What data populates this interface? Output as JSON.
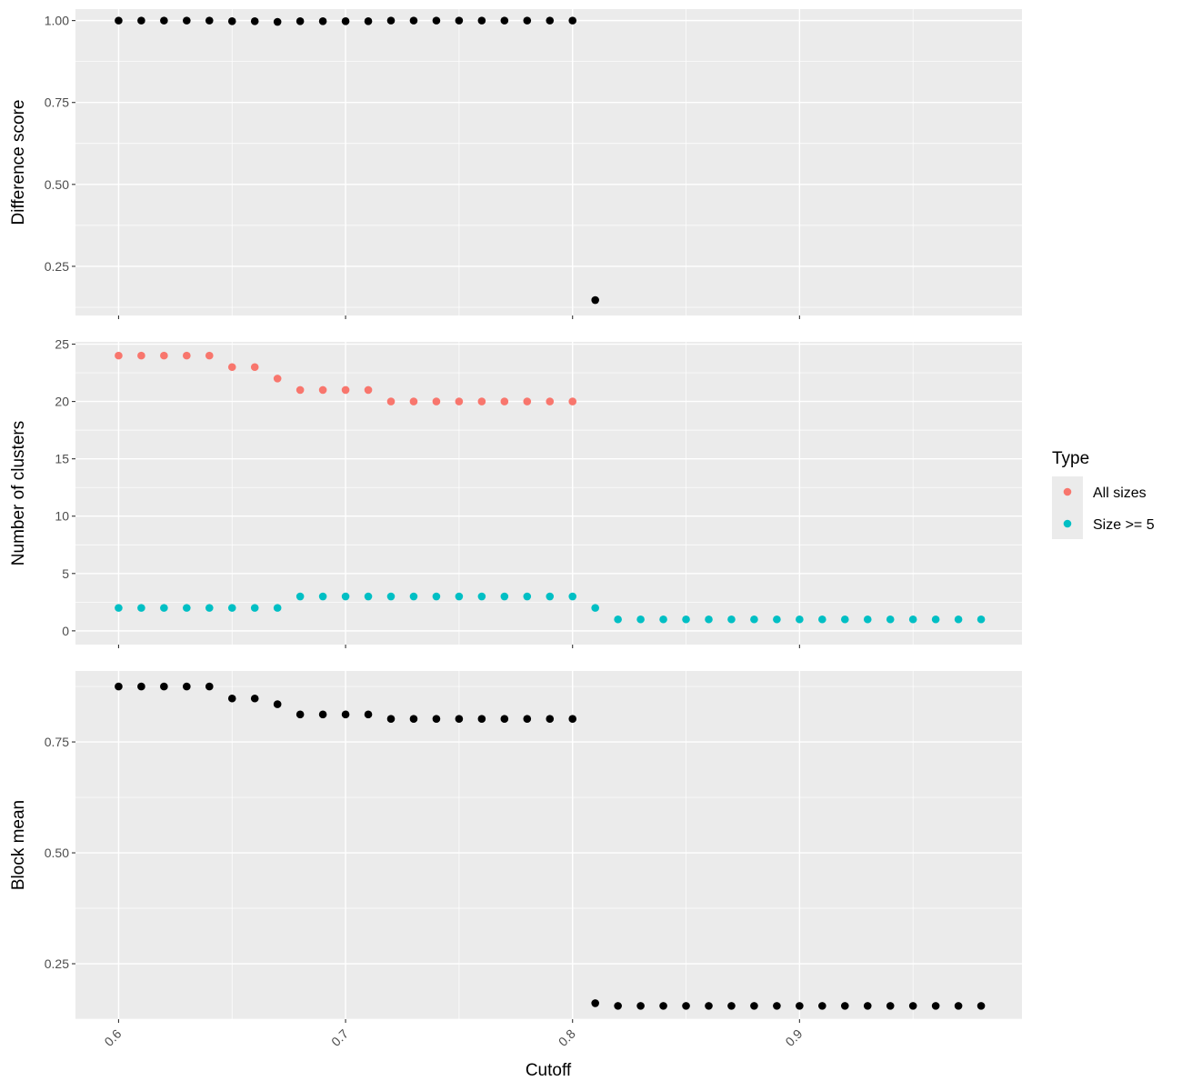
{
  "chart_data": {
    "type": "scatter",
    "x_label": "Cutoff",
    "x_ticks": [
      "0.6",
      "0.7",
      "0.8",
      "0.9"
    ],
    "xlim": [
      0.581,
      0.998
    ],
    "legend": {
      "title": "Type",
      "position": "right",
      "entries": [
        {
          "label": "All sizes",
          "color": "#f8766d"
        },
        {
          "label": "Size >= 5",
          "color": "#00bfc4"
        }
      ]
    },
    "panels": [
      {
        "ylabel": "Difference score",
        "ylim": [
          0.1,
          1.035
        ],
        "y_ticks": [
          "0.25",
          "0.50",
          "0.75",
          "1.00"
        ],
        "series": [
          {
            "color": "#000000",
            "points": [
              [
                0.6,
                1.0
              ],
              [
                0.61,
                1.0
              ],
              [
                0.62,
                1.0
              ],
              [
                0.63,
                1.0
              ],
              [
                0.64,
                1.0
              ],
              [
                0.65,
                0.998
              ],
              [
                0.66,
                0.998
              ],
              [
                0.67,
                0.996
              ],
              [
                0.68,
                0.998
              ],
              [
                0.69,
                0.998
              ],
              [
                0.7,
                0.998
              ],
              [
                0.71,
                0.998
              ],
              [
                0.72,
                1.0
              ],
              [
                0.73,
                1.0
              ],
              [
                0.74,
                1.0
              ],
              [
                0.75,
                1.0
              ],
              [
                0.76,
                1.0
              ],
              [
                0.77,
                1.0
              ],
              [
                0.78,
                1.0
              ],
              [
                0.79,
                1.0
              ],
              [
                0.8,
                1.0
              ],
              [
                0.81,
                0.147
              ]
            ]
          }
        ]
      },
      {
        "ylabel": "Number of clusters",
        "ylim": [
          -1.2,
          25.2
        ],
        "y_ticks": [
          "0",
          "5",
          "10",
          "15",
          "20",
          "25"
        ],
        "series": [
          {
            "name": "All sizes",
            "color": "#f8766d",
            "points": [
              [
                0.6,
                24
              ],
              [
                0.61,
                24
              ],
              [
                0.62,
                24
              ],
              [
                0.63,
                24
              ],
              [
                0.64,
                24
              ],
              [
                0.65,
                23
              ],
              [
                0.66,
                23
              ],
              [
                0.67,
                22
              ],
              [
                0.68,
                21
              ],
              [
                0.69,
                21
              ],
              [
                0.7,
                21
              ],
              [
                0.71,
                21
              ],
              [
                0.72,
                20
              ],
              [
                0.73,
                20
              ],
              [
                0.74,
                20
              ],
              [
                0.75,
                20
              ],
              [
                0.76,
                20
              ],
              [
                0.77,
                20
              ],
              [
                0.78,
                20
              ],
              [
                0.79,
                20
              ],
              [
                0.8,
                20
              ]
            ]
          },
          {
            "name": "Size >= 5",
            "color": "#00bfc4",
            "points": [
              [
                0.6,
                2
              ],
              [
                0.61,
                2
              ],
              [
                0.62,
                2
              ],
              [
                0.63,
                2
              ],
              [
                0.64,
                2
              ],
              [
                0.65,
                2
              ],
              [
                0.66,
                2
              ],
              [
                0.67,
                2
              ],
              [
                0.68,
                3
              ],
              [
                0.69,
                3
              ],
              [
                0.7,
                3
              ],
              [
                0.71,
                3
              ],
              [
                0.72,
                3
              ],
              [
                0.73,
                3
              ],
              [
                0.74,
                3
              ],
              [
                0.75,
                3
              ],
              [
                0.76,
                3
              ],
              [
                0.77,
                3
              ],
              [
                0.78,
                3
              ],
              [
                0.79,
                3
              ],
              [
                0.8,
                3
              ],
              [
                0.81,
                2
              ],
              [
                0.82,
                1
              ],
              [
                0.83,
                1
              ],
              [
                0.84,
                1
              ],
              [
                0.85,
                1
              ],
              [
                0.86,
                1
              ],
              [
                0.87,
                1
              ],
              [
                0.88,
                1
              ],
              [
                0.89,
                1
              ],
              [
                0.9,
                1
              ],
              [
                0.91,
                1
              ],
              [
                0.92,
                1
              ],
              [
                0.93,
                1
              ],
              [
                0.94,
                1
              ],
              [
                0.95,
                1
              ],
              [
                0.96,
                1
              ],
              [
                0.97,
                1
              ],
              [
                0.98,
                1
              ]
            ]
          }
        ]
      },
      {
        "ylabel": "Block mean",
        "ylim": [
          0.125,
          0.91
        ],
        "y_ticks": [
          "0.25",
          "0.50",
          "0.75"
        ],
        "series": [
          {
            "color": "#000000",
            "points": [
              [
                0.6,
                0.875
              ],
              [
                0.61,
                0.875
              ],
              [
                0.62,
                0.875
              ],
              [
                0.63,
                0.875
              ],
              [
                0.64,
                0.875
              ],
              [
                0.65,
                0.848
              ],
              [
                0.66,
                0.848
              ],
              [
                0.67,
                0.835
              ],
              [
                0.68,
                0.812
              ],
              [
                0.69,
                0.812
              ],
              [
                0.7,
                0.812
              ],
              [
                0.71,
                0.812
              ],
              [
                0.72,
                0.802
              ],
              [
                0.73,
                0.802
              ],
              [
                0.74,
                0.802
              ],
              [
                0.75,
                0.802
              ],
              [
                0.76,
                0.802
              ],
              [
                0.77,
                0.802
              ],
              [
                0.78,
                0.802
              ],
              [
                0.79,
                0.802
              ],
              [
                0.8,
                0.802
              ],
              [
                0.81,
                0.161
              ],
              [
                0.82,
                0.155
              ],
              [
                0.83,
                0.155
              ],
              [
                0.84,
                0.155
              ],
              [
                0.85,
                0.155
              ],
              [
                0.86,
                0.155
              ],
              [
                0.87,
                0.155
              ],
              [
                0.88,
                0.155
              ],
              [
                0.89,
                0.155
              ],
              [
                0.9,
                0.155
              ],
              [
                0.91,
                0.155
              ],
              [
                0.92,
                0.155
              ],
              [
                0.93,
                0.155
              ],
              [
                0.94,
                0.155
              ],
              [
                0.95,
                0.155
              ],
              [
                0.96,
                0.155
              ],
              [
                0.97,
                0.155
              ],
              [
                0.98,
                0.155
              ]
            ]
          }
        ]
      }
    ]
  }
}
